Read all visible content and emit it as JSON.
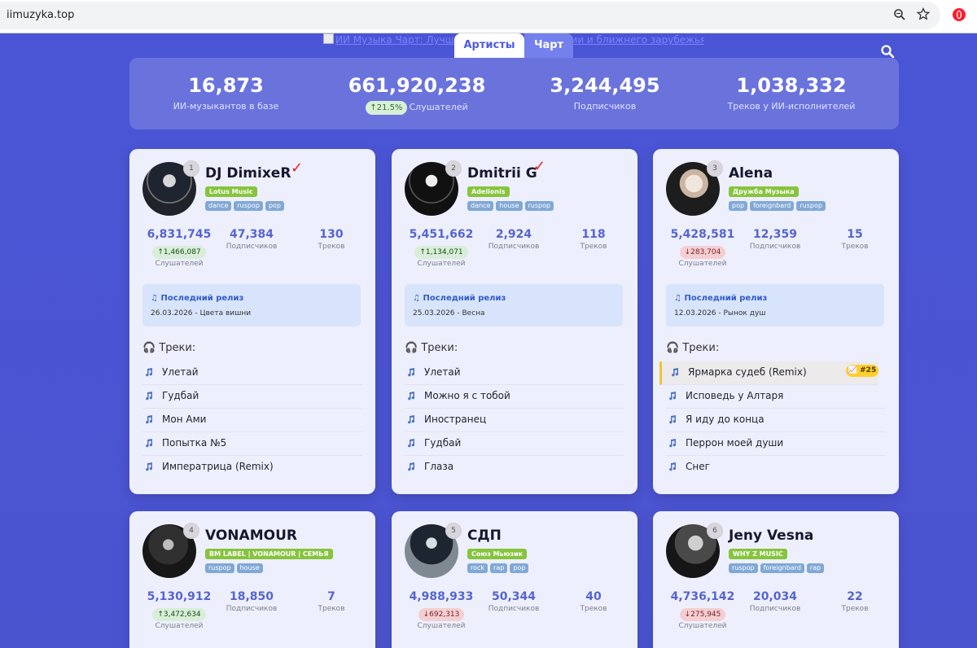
{
  "browser": {
    "url": "iimuzyka.top"
  },
  "header": {
    "broken_logo_text": "ИИ Музыка Чарт: Лучшие ИИ-музыканты России и ближнего зарубежья",
    "tabs": [
      {
        "label": "Артисты"
      },
      {
        "label": "Чарт"
      }
    ]
  },
  "stats": [
    {
      "value": "16,873",
      "label": "ИИ-музыкантов в базе",
      "badge": ""
    },
    {
      "value": "661,920,238",
      "label": "Слушателей",
      "badge": "↑21.5%"
    },
    {
      "value": "3,244,495",
      "label": "Подписчиков",
      "badge": ""
    },
    {
      "value": "1,038,332",
      "label": "Треков у ИИ-исполнителей",
      "badge": ""
    }
  ],
  "cards": [
    {
      "rank": "1",
      "name": "DJ DimixeR",
      "label": "Lotus Music",
      "genres": [
        "dance",
        "ruspop",
        "pop"
      ],
      "listeners": "6,831,745",
      "listeners_delta": "↑1,466,087",
      "delta_dir": "up",
      "subscribers": "47,384",
      "tracks_count": "130",
      "metric_labels": {
        "listeners": "Слушателей",
        "subscribers": "Подписчиков",
        "tracks": "Треков"
      },
      "release": {
        "title": "Последний релиз",
        "text": "26.03.2026 - Цвета вишни"
      },
      "tracks_title": "Треки:",
      "tracks": [
        "Улетай",
        "Гудбай",
        "Мон Ами",
        "Попытка №5",
        "Императрица (Remix)"
      ],
      "highlight_badge": ""
    },
    {
      "rank": "2",
      "name": "Dmitrii G",
      "label": "Adelionis",
      "genres": [
        "dance",
        "house",
        "ruspop"
      ],
      "listeners": "5,451,662",
      "listeners_delta": "↑1,134,071",
      "delta_dir": "up",
      "subscribers": "2,924",
      "tracks_count": "118",
      "metric_labels": {
        "listeners": "Слушателей",
        "subscribers": "Подписчиков",
        "tracks": "Треков"
      },
      "release": {
        "title": "Последний релиз",
        "text": "25.03.2026 - Весна"
      },
      "tracks_title": "Треки:",
      "tracks": [
        "Улетай",
        "Можно я с тобой",
        "Иностранец",
        "Гудбай",
        "Глаза"
      ],
      "highlight_badge": ""
    },
    {
      "rank": "3",
      "name": "Alena",
      "label": "Дружба Музыка",
      "genres": [
        "pop",
        "foreignbard",
        "ruspop"
      ],
      "listeners": "5,428,581",
      "listeners_delta": "↓283,704",
      "delta_dir": "down",
      "subscribers": "12,359",
      "tracks_count": "15",
      "metric_labels": {
        "listeners": "Слушателей",
        "subscribers": "Подписчиков",
        "tracks": "Треков"
      },
      "release": {
        "title": "Последний релиз",
        "text": "12.03.2026 - Рынок душ"
      },
      "tracks_title": "Треки:",
      "tracks": [
        "Ярмарка судеб (Remix)",
        "Исповедь у Алтаря",
        "Я иду до конца",
        "Перрон моей души",
        "Снег"
      ],
      "highlight_badge": "📈 #25"
    },
    {
      "rank": "4",
      "name": "VONAMOUR",
      "label": "BM LABEL | VONAMOUR | СЕМЬЯ",
      "genres": [
        "ruspop",
        "house"
      ],
      "listeners": "5,130,912",
      "listeners_delta": "↑3,472,634",
      "delta_dir": "up",
      "subscribers": "18,850",
      "tracks_count": "7",
      "metric_labels": {
        "listeners": "Слушателей",
        "subscribers": "Подписчиков",
        "tracks": "Треков"
      }
    },
    {
      "rank": "5",
      "name": "СДП",
      "label": "Союз Мьюзик",
      "genres": [
        "rock",
        "rap",
        "pop"
      ],
      "listeners": "4,988,933",
      "listeners_delta": "↓692,313",
      "delta_dir": "down",
      "subscribers": "50,344",
      "tracks_count": "40",
      "metric_labels": {
        "listeners": "Слушателей",
        "subscribers": "Подписчиков",
        "tracks": "Треков"
      }
    },
    {
      "rank": "6",
      "name": "Jeny Vesna",
      "label": "WHY Z MUSIC",
      "genres": [
        "ruspop",
        "foreignbard",
        "rap"
      ],
      "listeners": "4,736,142",
      "listeners_delta": "↓275,945",
      "delta_dir": "down",
      "subscribers": "20,034",
      "tracks_count": "22",
      "metric_labels": {
        "listeners": "Слушателей",
        "subscribers": "Подписчиков",
        "tracks": "Треков"
      }
    }
  ],
  "icons": {
    "zoom": "zoom-icon",
    "star": "star-icon",
    "opera": "opera-icon",
    "search": "search-icon",
    "music": "music-note-icon",
    "headphones": "headphones-icon",
    "chart": "chart-icon"
  },
  "colors": {
    "background": "#4b56d2",
    "accent": "#5565cf",
    "label_green": "#86c43d",
    "genre_blue": "#80a8d6",
    "chart_badge": "#ffcf2d"
  }
}
